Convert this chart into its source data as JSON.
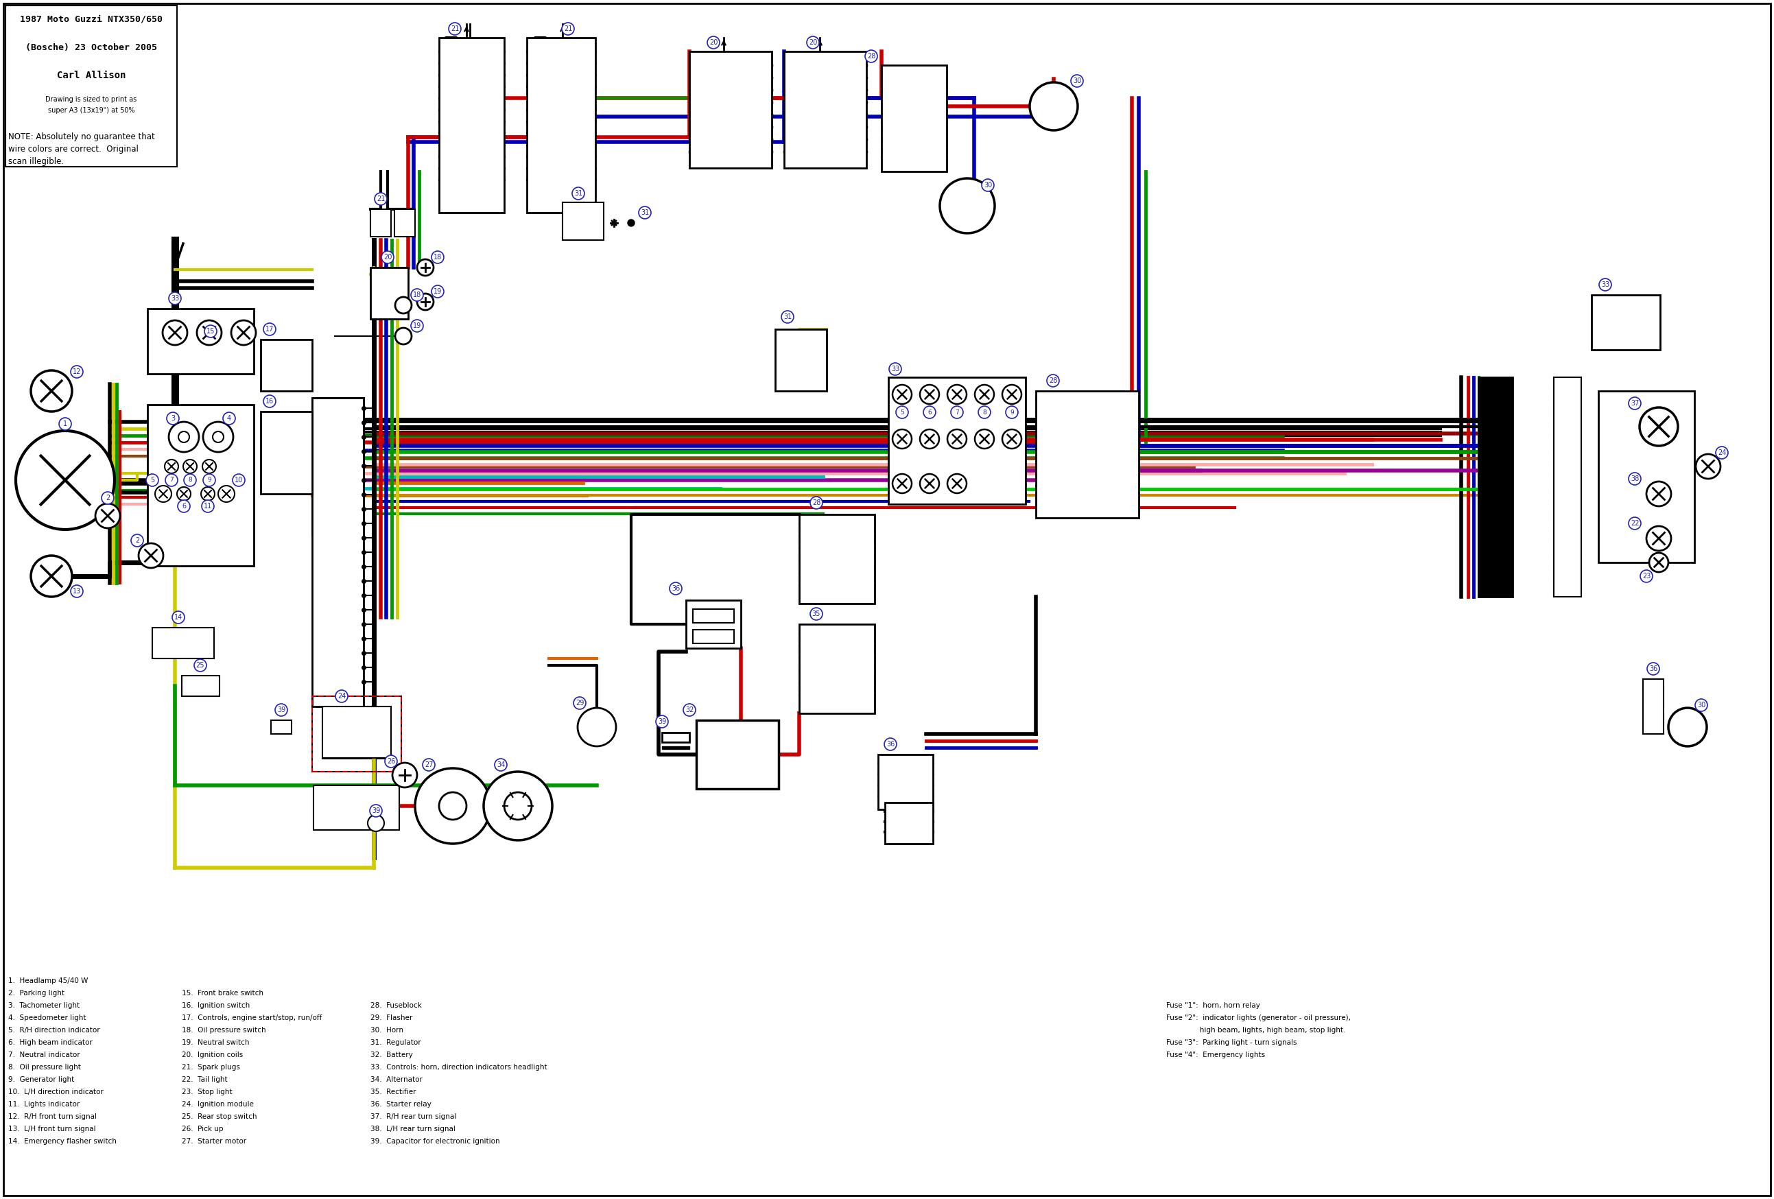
{
  "title_line1": "1987 Moto Guzzi NTX350/650",
  "title_line2": "(Bosche) 23 October 2005",
  "title_line3": "Carl Allison",
  "subtitle_line1": "Drawing is sized to print as",
  "subtitle_line2": "super A3 (13x19\") at 50%",
  "note_lines": [
    "NOTE: Absolutely no guarantee that",
    "wire colors are correct.  Original",
    "scan illegible."
  ],
  "legend_col1": [
    "1.  Headlamp 45/40 W",
    "2.  Parking light",
    "3.  Tachometer light",
    "4.  Speedometer light",
    "5.  R/H direction indicator",
    "6.  High beam indicator",
    "7.  Neutral indicator",
    "8.  Oil pressure light",
    "9.  Generator light",
    "10.  L/H direction indicator",
    "11.  Lights indicator",
    "12.  R/H front turn signal",
    "13.  L/H front turn signal",
    "14.  Emergency flasher switch"
  ],
  "legend_col2": [
    "15.  Front brake switch",
    "16.  Ignition switch",
    "17.  Controls, engine start/stop, run/off",
    "18.  Oil pressure switch",
    "19.  Neutral switch",
    "20.  Ignition coils",
    "21.  Spark plugs",
    "22.  Tail light",
    "23.  Stop light",
    "24.  Ignition module",
    "25.  Rear stop switch",
    "26.  Pick up",
    "27.  Starter motor"
  ],
  "legend_col3": [
    "28.  Fuseblock",
    "29.  Flasher",
    "30.  Horn",
    "31.  Regulator",
    "32.  Battery",
    "33.  Controls: horn, direction indicators headlight",
    "34.  Alternator",
    "35.  Rectifier",
    "36.  Starter relay",
    "37.  R/H rear turn signal",
    "38.  L/H rear turn signal",
    "39.  Capacitor for electronic ignition"
  ],
  "legend_col4": [
    "Fuse \"1\":  horn, horn relay",
    "Fuse \"2\":  indicator lights (generator - oil pressure),",
    "               high beam, lights, high beam, stop light.",
    "Fuse \"3\":  Parking light - turn signals",
    "Fuse \"4\":  Emergency lights"
  ],
  "bg": "#ffffff",
  "black": "#000000",
  "red": "#cc0000",
  "blue": "#0000bb",
  "green": "#009900",
  "yellow": "#cccc00",
  "brown": "#8b4513",
  "purple": "#990099",
  "pink": "#ffaaaa",
  "cyan": "#00bbbb",
  "orange": "#dd6600",
  "dkgreen": "#007700",
  "ltblue": "#aaaaff",
  "label_color": "#2222bb"
}
